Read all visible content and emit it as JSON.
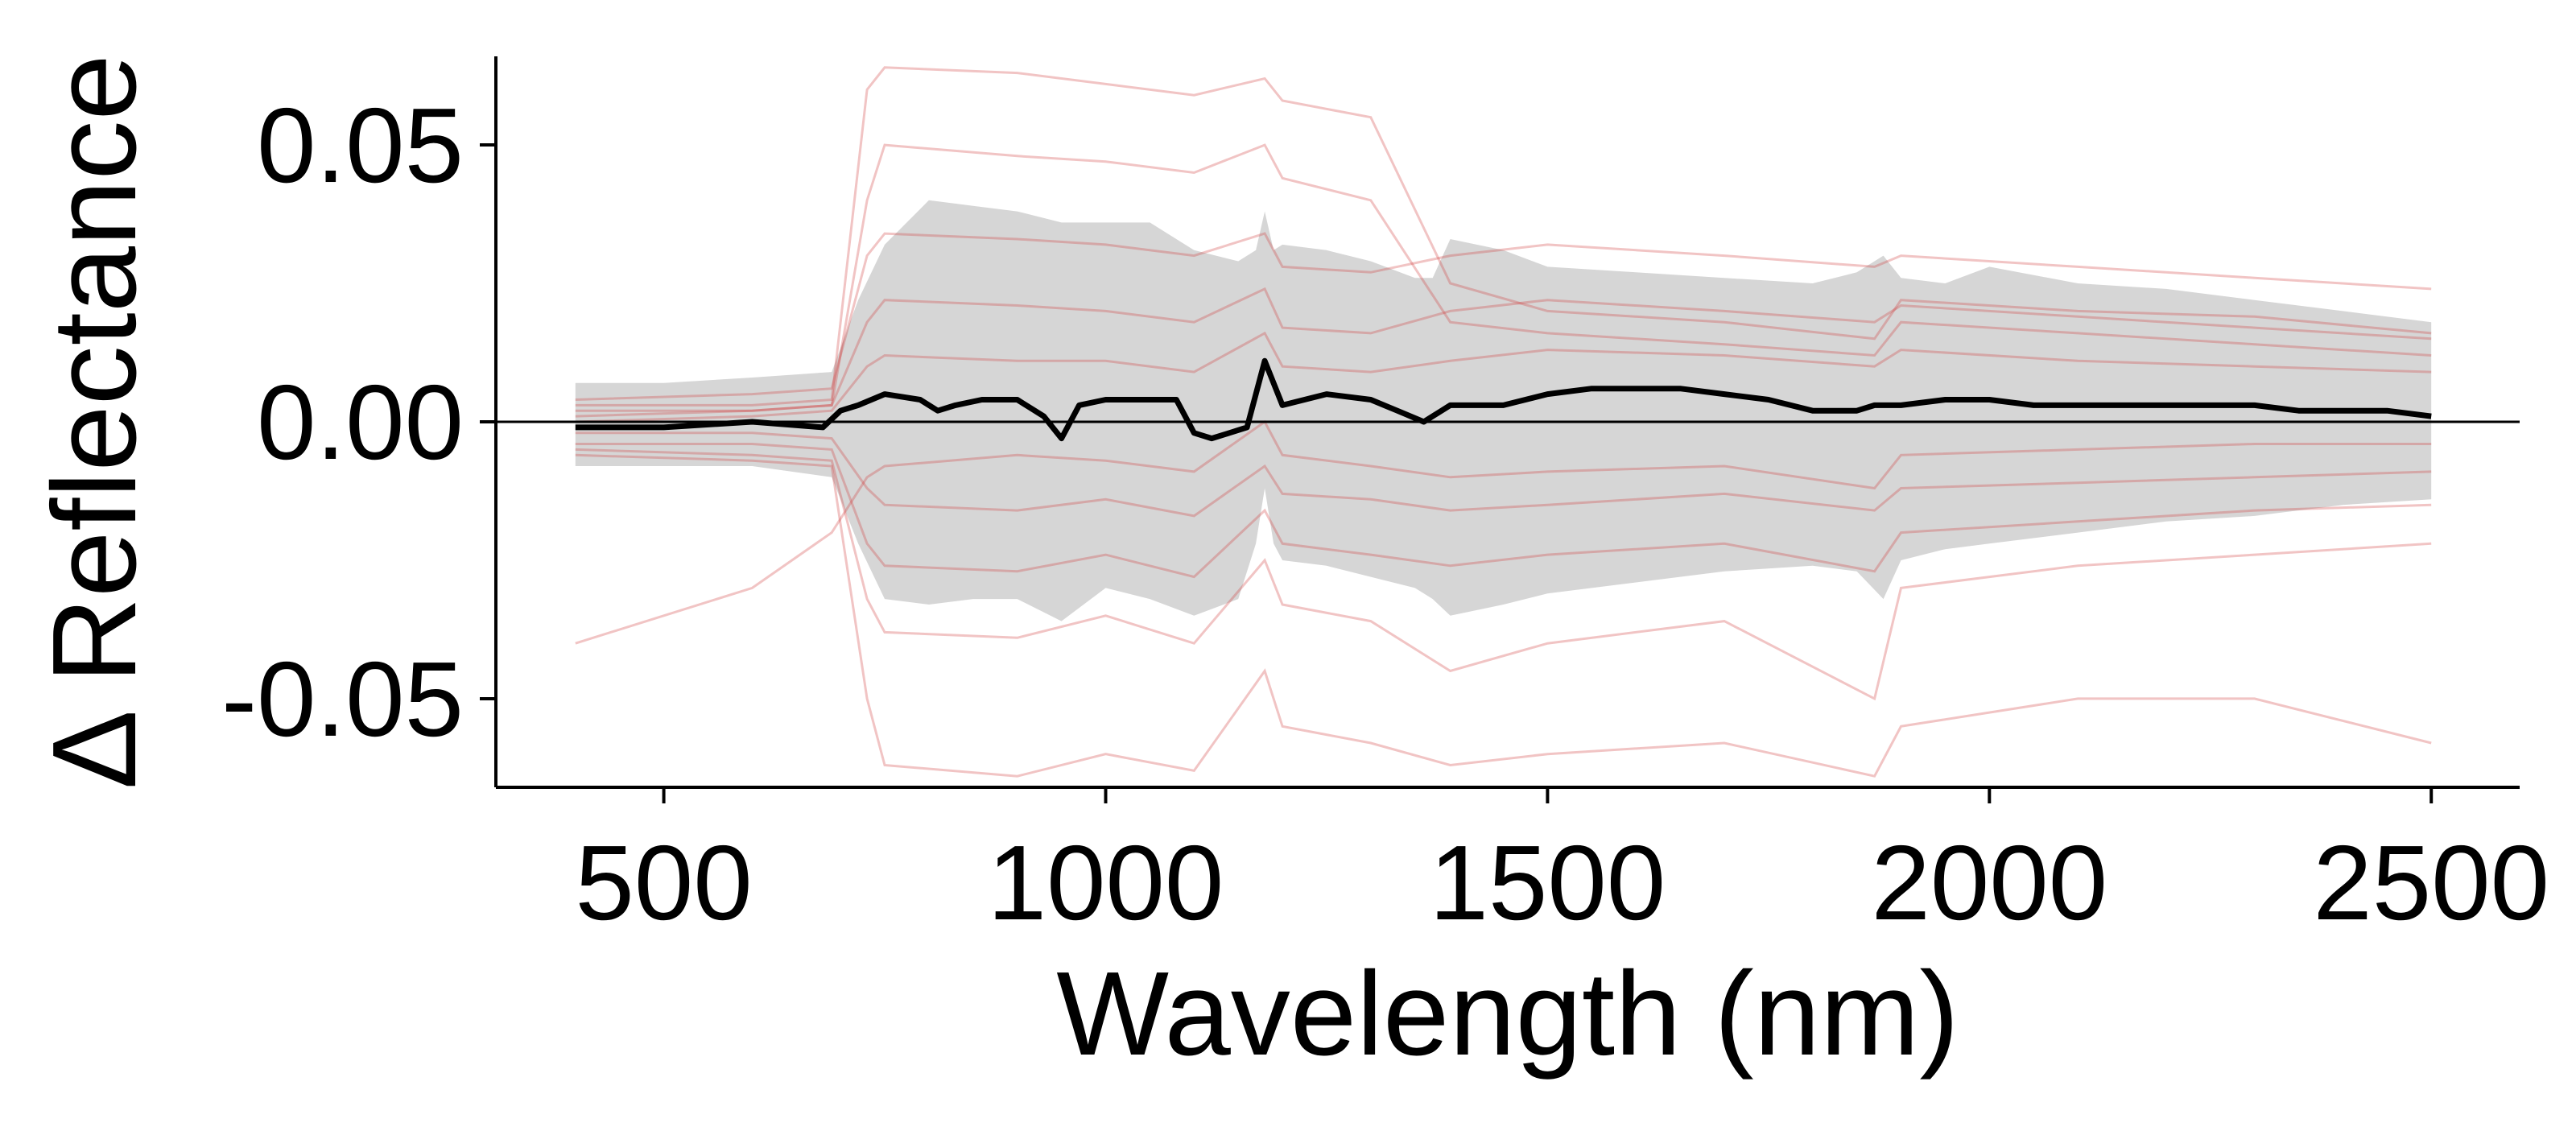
{
  "chart_data": {
    "type": "line",
    "xlabel": "Wavelength (nm)",
    "ylabel": "Δ Reflectance",
    "xlim": [
      310,
      2600
    ],
    "ylim": [
      -0.066,
      0.066
    ],
    "x_ticks": [
      500,
      1000,
      1500,
      2000,
      2500
    ],
    "x_tick_labels": [
      "500",
      "1000",
      "1500",
      "2000",
      "2500"
    ],
    "y_ticks": [
      0.05,
      0.0,
      -0.05
    ],
    "y_tick_labels": [
      "0.05",
      "0.00",
      "-0.05"
    ],
    "grid": false,
    "legend": "none",
    "reference_line_y": 0,
    "colors": {
      "mean": "#000000",
      "band": "#d6d6d6",
      "individual": "#d23b3b",
      "axis": "#000000"
    },
    "mean_series": {
      "x": [
        400,
        500,
        600,
        680,
        700,
        720,
        750,
        790,
        810,
        830,
        860,
        900,
        930,
        950,
        970,
        1000,
        1050,
        1080,
        1100,
        1120,
        1140,
        1160,
        1180,
        1200,
        1250,
        1300,
        1330,
        1360,
        1390,
        1450,
        1500,
        1550,
        1600,
        1650,
        1700,
        1750,
        1800,
        1850,
        1870,
        1900,
        1950,
        2000,
        2050,
        2100,
        2150,
        2200,
        2250,
        2300,
        2350,
        2400,
        2450,
        2500
      ],
      "y": [
        -0.001,
        -0.001,
        0.0,
        -0.001,
        0.002,
        0.003,
        0.005,
        0.004,
        0.002,
        0.003,
        0.004,
        0.004,
        0.001,
        -0.003,
        0.003,
        0.004,
        0.004,
        0.004,
        -0.002,
        -0.003,
        -0.002,
        -0.001,
        0.011,
        0.003,
        0.005,
        0.004,
        0.002,
        0.0,
        0.003,
        0.003,
        0.005,
        0.006,
        0.006,
        0.006,
        0.005,
        0.004,
        0.002,
        0.002,
        0.003,
        0.003,
        0.004,
        0.004,
        0.003,
        0.003,
        0.003,
        0.003,
        0.003,
        0.003,
        0.002,
        0.002,
        0.002,
        0.001
      ]
    },
    "band": {
      "x": [
        400,
        500,
        600,
        690,
        720,
        750,
        800,
        850,
        900,
        950,
        1000,
        1050,
        1100,
        1150,
        1170,
        1180,
        1190,
        1200,
        1250,
        1300,
        1350,
        1370,
        1390,
        1450,
        1500,
        1600,
        1700,
        1800,
        1850,
        1880,
        1900,
        1950,
        2000,
        2100,
        2200,
        2300,
        2400,
        2500
      ],
      "upper": [
        0.007,
        0.007,
        0.008,
        0.009,
        0.022,
        0.032,
        0.04,
        0.039,
        0.038,
        0.036,
        0.036,
        0.036,
        0.031,
        0.029,
        0.031,
        0.038,
        0.031,
        0.032,
        0.031,
        0.029,
        0.026,
        0.026,
        0.033,
        0.031,
        0.028,
        0.027,
        0.026,
        0.025,
        0.027,
        0.03,
        0.026,
        0.025,
        0.028,
        0.025,
        0.024,
        0.022,
        0.02,
        0.018
      ],
      "lower": [
        -0.008,
        -0.008,
        -0.008,
        -0.01,
        -0.022,
        -0.032,
        -0.033,
        -0.032,
        -0.032,
        -0.036,
        -0.03,
        -0.032,
        -0.035,
        -0.032,
        -0.022,
        -0.012,
        -0.022,
        -0.025,
        -0.026,
        -0.028,
        -0.03,
        -0.032,
        -0.035,
        -0.033,
        -0.031,
        -0.029,
        -0.027,
        -0.026,
        -0.027,
        -0.032,
        -0.025,
        -0.023,
        -0.022,
        -0.02,
        -0.018,
        -0.017,
        -0.015,
        -0.014
      ]
    },
    "individual_series": [
      {
        "x": [
          400,
          600,
          690,
          730,
          750,
          900,
          1000,
          1100,
          1180,
          1200,
          1300,
          1390,
          1500,
          1700,
          1870,
          1900,
          2100,
          2300,
          2500
        ],
        "y": [
          0.003,
          0.003,
          0.004,
          0.06,
          0.064,
          0.063,
          0.061,
          0.059,
          0.062,
          0.058,
          0.055,
          0.025,
          0.02,
          0.018,
          0.015,
          0.022,
          0.02,
          0.019,
          0.016
        ]
      },
      {
        "x": [
          400,
          600,
          690,
          730,
          750,
          900,
          1000,
          1100,
          1180,
          1200,
          1300,
          1390,
          1500,
          1700,
          1870,
          1900,
          2100,
          2300,
          2500
        ],
        "y": [
          0.001,
          0.002,
          0.003,
          0.04,
          0.05,
          0.048,
          0.047,
          0.045,
          0.05,
          0.044,
          0.04,
          0.018,
          0.016,
          0.014,
          0.012,
          0.018,
          0.016,
          0.014,
          0.012
        ]
      },
      {
        "x": [
          400,
          600,
          690,
          730,
          750,
          900,
          1000,
          1100,
          1180,
          1200,
          1300,
          1390,
          1500,
          1700,
          1870,
          1900,
          2100,
          2300,
          2500
        ],
        "y": [
          0.004,
          0.005,
          0.006,
          0.03,
          0.034,
          0.033,
          0.032,
          0.03,
          0.034,
          0.028,
          0.027,
          0.03,
          0.032,
          0.03,
          0.028,
          0.03,
          0.028,
          0.026,
          0.024
        ]
      },
      {
        "x": [
          400,
          600,
          690,
          730,
          750,
          900,
          1000,
          1100,
          1180,
          1200,
          1300,
          1390,
          1500,
          1700,
          1870,
          1900,
          2100,
          2300,
          2500
        ],
        "y": [
          0.002,
          0.002,
          0.003,
          0.018,
          0.022,
          0.021,
          0.02,
          0.018,
          0.024,
          0.017,
          0.016,
          0.02,
          0.022,
          0.02,
          0.018,
          0.021,
          0.019,
          0.017,
          0.015
        ]
      },
      {
        "x": [
          400,
          600,
          690,
          730,
          750,
          900,
          1000,
          1100,
          1180,
          1200,
          1300,
          1390,
          1500,
          1700,
          1870,
          1900,
          2100,
          2300,
          2500
        ],
        "y": [
          0.0,
          0.001,
          0.002,
          0.01,
          0.012,
          0.011,
          0.011,
          0.009,
          0.016,
          0.01,
          0.009,
          0.011,
          0.013,
          0.012,
          0.01,
          0.013,
          0.011,
          0.01,
          0.009
        ]
      },
      {
        "x": [
          400,
          600,
          690,
          730,
          750,
          900,
          1000,
          1100,
          1180,
          1200,
          1300,
          1390,
          1500,
          1700,
          1870,
          1900,
          2100,
          2300,
          2500
        ],
        "y": [
          -0.002,
          -0.002,
          -0.003,
          -0.012,
          -0.015,
          -0.016,
          -0.014,
          -0.017,
          -0.008,
          -0.013,
          -0.014,
          -0.016,
          -0.015,
          -0.013,
          -0.016,
          -0.012,
          -0.011,
          -0.01,
          -0.009
        ]
      },
      {
        "x": [
          400,
          600,
          690,
          730,
          750,
          900,
          1000,
          1100,
          1180,
          1200,
          1300,
          1390,
          1500,
          1700,
          1870,
          1900,
          2100,
          2300,
          2500
        ],
        "y": [
          -0.004,
          -0.004,
          -0.005,
          -0.022,
          -0.026,
          -0.027,
          -0.024,
          -0.028,
          -0.016,
          -0.022,
          -0.024,
          -0.026,
          -0.024,
          -0.022,
          -0.027,
          -0.02,
          -0.018,
          -0.016,
          -0.015
        ]
      },
      {
        "x": [
          400,
          600,
          690,
          730,
          750,
          900,
          1000,
          1100,
          1180,
          1200,
          1300,
          1390,
          1500,
          1700,
          1870,
          1900,
          2100,
          2300,
          2500
        ],
        "y": [
          -0.005,
          -0.006,
          -0.007,
          -0.032,
          -0.038,
          -0.039,
          -0.035,
          -0.04,
          -0.025,
          -0.033,
          -0.036,
          -0.045,
          -0.04,
          -0.036,
          -0.05,
          -0.03,
          -0.026,
          -0.024,
          -0.022
        ]
      },
      {
        "x": [
          400,
          600,
          690,
          730,
          750,
          900,
          1000,
          1100,
          1180,
          1200,
          1300,
          1390,
          1500,
          1700,
          1870,
          1900,
          2100,
          2300,
          2500
        ],
        "y": [
          -0.006,
          -0.007,
          -0.008,
          -0.05,
          -0.062,
          -0.064,
          -0.06,
          -0.063,
          -0.045,
          -0.055,
          -0.058,
          -0.062,
          -0.06,
          -0.058,
          -0.064,
          -0.055,
          -0.05,
          -0.05,
          -0.058
        ]
      },
      {
        "x": [
          400,
          600,
          690,
          730,
          750,
          900,
          1000,
          1100,
          1180,
          1200,
          1300,
          1390,
          1500,
          1700,
          1870,
          1900,
          2100,
          2300,
          2500
        ],
        "y": [
          -0.04,
          -0.03,
          -0.02,
          -0.01,
          -0.008,
          -0.006,
          -0.007,
          -0.009,
          0.0,
          -0.006,
          -0.008,
          -0.01,
          -0.009,
          -0.008,
          -0.012,
          -0.006,
          -0.005,
          -0.004,
          -0.004
        ]
      }
    ]
  }
}
